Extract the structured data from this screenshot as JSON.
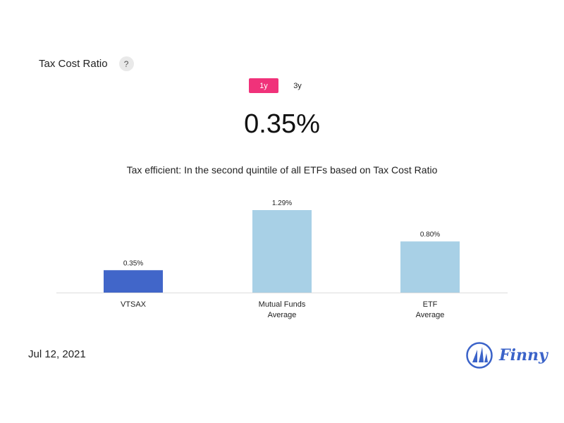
{
  "header": {
    "title": "Tax Cost Ratio",
    "help_label": "?"
  },
  "tabs": [
    {
      "label": "1y",
      "active": true
    },
    {
      "label": "3y",
      "active": false
    }
  ],
  "main_value": "0.35%",
  "subtitle": "Tax efficient: In the second quintile of all ETFs based on Tax Cost Ratio",
  "colors": {
    "accent": "#f0327a",
    "primary_bar": "#4166c9",
    "secondary_bar": "#a8d0e6",
    "brand": "#3b63c9"
  },
  "chart_data": {
    "type": "bar",
    "categories": [
      [
        "VTSAX"
      ],
      [
        "Mutual Funds",
        "Average"
      ],
      [
        "ETF",
        "Average"
      ]
    ],
    "values": [
      0.35,
      1.29,
      0.8
    ],
    "value_labels": [
      "0.35%",
      "1.29%",
      "0.80%"
    ],
    "highlight_index": 0,
    "ylim": [
      0,
      1.29
    ],
    "grid": false
  },
  "footer": {
    "date": "Jul 12, 2021",
    "brand": "Finny"
  }
}
